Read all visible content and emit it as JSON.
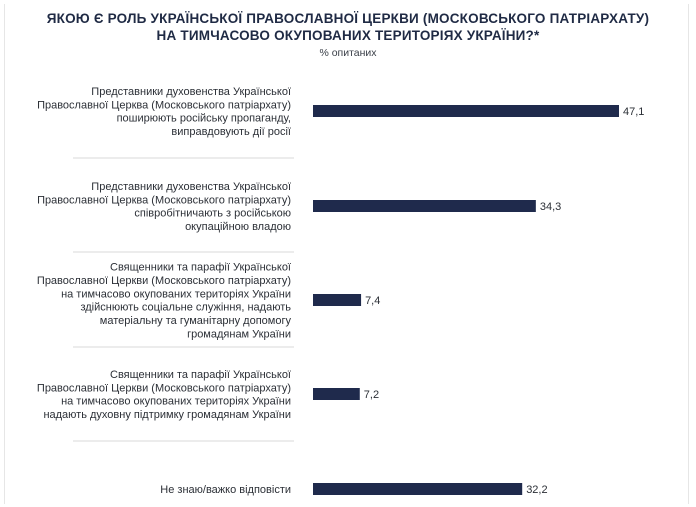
{
  "chart_data": {
    "type": "bar",
    "orientation": "horizontal",
    "title_lines": [
      "ЯКОЮ Є РОЛЬ УКРАЇНСЬКОЇ ПРАВОСЛАВНОЇ ЦЕРКВИ (МОСКОВСЬКОГО ПАТРІАРХАТУ)",
      "НА ТИМЧАСОВО ОКУПОВАНИХ ТЕРИТОРІЯХ УКРАЇНИ?*"
    ],
    "subtitle": "% опитаних",
    "categories": [
      [
        "Представники духовенства Української",
        "Православної Церква (Московського патріархату)",
        "поширюють російську пропаганду,",
        "виправдовують дії росії"
      ],
      [
        "Представники духовенства Української",
        "Православної Церква (Московського патріархату)",
        "співробітничають з російською",
        "окупаційною владою"
      ],
      [
        "Священники та парафії Української",
        "Православної Церкви (Московського патріархату)",
        "на тимчасово окупованих територіях України",
        "здійснюють соціальне служіння, надають",
        "матеріальну та гуманітарну допомогу",
        "громадянам України"
      ],
      [
        "Священники та парафії Української",
        "Православної Церкви (Московського патріархату)",
        "на тимчасово окупованих територіях України",
        "надають духовну підтримку громадянам України"
      ],
      [
        "Не знаю/важко відповісти"
      ]
    ],
    "values": [
      47.1,
      34.3,
      7.4,
      7.2,
      32.2
    ],
    "value_labels": [
      "47,1",
      "34,3",
      "7,4",
      "7,2",
      "32,2"
    ],
    "bar_color": "#1f2a4c",
    "grid": false,
    "legend": "none"
  }
}
